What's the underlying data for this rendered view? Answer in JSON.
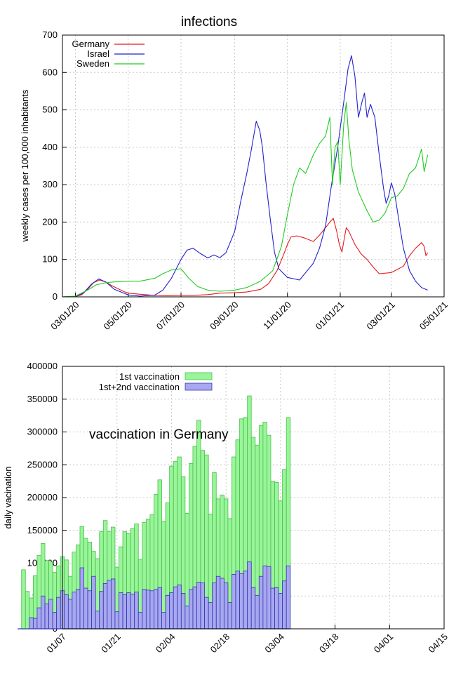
{
  "chart_data": [
    {
      "type": "line",
      "title": "infections",
      "xlabel": "",
      "ylabel": "weekly cases per 100,000 inhabitants",
      "ylim": [
        0,
        700
      ],
      "yticks": [
        0,
        100,
        200,
        300,
        400,
        500,
        600,
        700
      ],
      "xticks": [
        "03/01/20",
        "05/01/20",
        "07/01/20",
        "09/01/20",
        "11/01/20",
        "01/01/21",
        "03/01/21",
        "05/01/21"
      ],
      "xlim": [
        "02/15/20",
        "05/01/21"
      ],
      "grid": true,
      "legend_position": "top-left",
      "series": [
        {
          "name": "Germany",
          "color": "#e41a1c",
          "points": [
            [
              "02/15/20",
              0
            ],
            [
              "03/01/20",
              1
            ],
            [
              "03/08/20",
              5
            ],
            [
              "03/15/20",
              20
            ],
            [
              "03/22/20",
              38
            ],
            [
              "03/29/20",
              45
            ],
            [
              "04/05/20",
              40
            ],
            [
              "04/12/20",
              30
            ],
            [
              "04/19/20",
              22
            ],
            [
              "04/26/20",
              14
            ],
            [
              "05/01/20",
              10
            ],
            [
              "05/15/20",
              7
            ],
            [
              "06/01/20",
              4
            ],
            [
              "06/15/20",
              3
            ],
            [
              "07/01/20",
              4
            ],
            [
              "07/15/20",
              4
            ],
            [
              "08/01/20",
              6
            ],
            [
              "08/15/20",
              10
            ],
            [
              "09/01/20",
              11
            ],
            [
              "09/15/20",
              13
            ],
            [
              "10/01/20",
              20
            ],
            [
              "10/10/20",
              35
            ],
            [
              "10/20/20",
              70
            ],
            [
              "10/27/20",
              110
            ],
            [
              "11/01/20",
              140
            ],
            [
              "11/05/20",
              160
            ],
            [
              "11/12/20",
              163
            ],
            [
              "11/20/20",
              158
            ],
            [
              "12/01/20",
              148
            ],
            [
              "12/08/20",
              165
            ],
            [
              "12/15/20",
              185
            ],
            [
              "12/20/20",
              200
            ],
            [
              "12/24/20",
              210
            ],
            [
              "12/28/20",
              175
            ],
            [
              "12/31/20",
              140
            ],
            [
              "01/03/21",
              120
            ],
            [
              "01/06/21",
              160
            ],
            [
              "01/08/21",
              185
            ],
            [
              "01/11/21",
              175
            ],
            [
              "01/14/21",
              160
            ],
            [
              "01/18/21",
              140
            ],
            [
              "01/25/21",
              115
            ],
            [
              "02/01/21",
              100
            ],
            [
              "02/08/21",
              80
            ],
            [
              "02/15/21",
              62
            ],
            [
              "03/01/21",
              65
            ],
            [
              "03/15/21",
              82
            ],
            [
              "03/22/21",
              110
            ],
            [
              "03/29/21",
              130
            ],
            [
              "04/05/21",
              145
            ],
            [
              "04/08/21",
              135
            ],
            [
              "04/10/21",
              110
            ],
            [
              "04/12/21",
              118
            ]
          ]
        },
        {
          "name": "Israel",
          "color": "#2222cc",
          "points": [
            [
              "02/15/20",
              0
            ],
            [
              "03/01/20",
              1
            ],
            [
              "03/10/20",
              10
            ],
            [
              "03/20/20",
              35
            ],
            [
              "03/28/20",
              48
            ],
            [
              "04/05/20",
              40
            ],
            [
              "04/15/20",
              20
            ],
            [
              "05/01/20",
              5
            ],
            [
              "05/15/20",
              2
            ],
            [
              "06/01/20",
              5
            ],
            [
              "06/10/20",
              18
            ],
            [
              "06/20/20",
              50
            ],
            [
              "07/01/20",
              100
            ],
            [
              "07/08/20",
              125
            ],
            [
              "07/15/20",
              130
            ],
            [
              "07/22/20",
              118
            ],
            [
              "08/01/20",
              104
            ],
            [
              "08/08/20",
              112
            ],
            [
              "08/15/20",
              105
            ],
            [
              "08/22/20",
              118
            ],
            [
              "09/01/20",
              175
            ],
            [
              "09/08/20",
              255
            ],
            [
              "09/15/20",
              330
            ],
            [
              "09/20/20",
              390
            ],
            [
              "09/26/20",
              470
            ],
            [
              "09/30/20",
              445
            ],
            [
              "10/03/20",
              400
            ],
            [
              "10/07/20",
              310
            ],
            [
              "10/12/20",
              210
            ],
            [
              "10/17/20",
              120
            ],
            [
              "10/22/20",
              75
            ],
            [
              "11/01/20",
              52
            ],
            [
              "11/15/20",
              45
            ],
            [
              "12/01/20",
              90
            ],
            [
              "12/08/20",
              130
            ],
            [
              "12/15/20",
              190
            ],
            [
              "12/22/20",
              300
            ],
            [
              "12/29/20",
              400
            ],
            [
              "01/05/21",
              520
            ],
            [
              "01/10/21",
              610
            ],
            [
              "01/14/21",
              645
            ],
            [
              "01/18/21",
              590
            ],
            [
              "01/22/21",
              480
            ],
            [
              "01/26/21",
              520
            ],
            [
              "01/29/21",
              545
            ],
            [
              "02/01/21",
              480
            ],
            [
              "02/05/21",
              515
            ],
            [
              "02/10/21",
              480
            ],
            [
              "02/15/21",
              380
            ],
            [
              "02/20/21",
              290
            ],
            [
              "02/23/21",
              250
            ],
            [
              "02/26/21",
              270
            ],
            [
              "03/01/21",
              305
            ],
            [
              "03/05/21",
              275
            ],
            [
              "03/10/21",
              200
            ],
            [
              "03/15/21",
              130
            ],
            [
              "03/22/21",
              70
            ],
            [
              "03/29/21",
              42
            ],
            [
              "04/05/21",
              25
            ],
            [
              "04/12/21",
              18
            ]
          ]
        },
        {
          "name": "Sweden",
          "color": "#22cc22",
          "points": [
            [
              "02/15/20",
              0
            ],
            [
              "03/01/20",
              2
            ],
            [
              "03/15/20",
              18
            ],
            [
              "03/25/20",
              32
            ],
            [
              "04/05/20",
              38
            ],
            [
              "04/15/20",
              40
            ],
            [
              "05/01/20",
              42
            ],
            [
              "05/15/20",
              42
            ],
            [
              "06/01/20",
              50
            ],
            [
              "06/10/20",
              62
            ],
            [
              "06/20/20",
              72
            ],
            [
              "07/01/20",
              75
            ],
            [
              "07/10/20",
              50
            ],
            [
              "07/20/20",
              28
            ],
            [
              "08/01/20",
              18
            ],
            [
              "08/15/20",
              15
            ],
            [
              "09/01/20",
              18
            ],
            [
              "09/15/20",
              25
            ],
            [
              "10/01/20",
              42
            ],
            [
              "10/15/20",
              70
            ],
            [
              "10/25/20",
              135
            ],
            [
              "11/01/20",
              220
            ],
            [
              "11/08/20",
              300
            ],
            [
              "11/15/20",
              345
            ],
            [
              "11/22/20",
              330
            ],
            [
              "12/01/20",
              380
            ],
            [
              "12/08/20",
              410
            ],
            [
              "12/15/20",
              430
            ],
            [
              "12/20/20",
              480
            ],
            [
              "12/23/20",
              300
            ],
            [
              "12/26/20",
              400
            ],
            [
              "12/29/20",
              415
            ],
            [
              "01/01/21",
              300
            ],
            [
              "01/05/21",
              460
            ],
            [
              "01/08/21",
              520
            ],
            [
              "01/11/21",
              420
            ],
            [
              "01/15/21",
              340
            ],
            [
              "01/22/21",
              280
            ],
            [
              "02/01/21",
              230
            ],
            [
              "02/08/21",
              200
            ],
            [
              "02/15/21",
              205
            ],
            [
              "02/22/21",
              225
            ],
            [
              "03/01/21",
              265
            ],
            [
              "03/08/21",
              270
            ],
            [
              "03/15/21",
              290
            ],
            [
              "03/22/21",
              330
            ],
            [
              "03/29/21",
              345
            ],
            [
              "04/05/21",
              395
            ],
            [
              "04/08/21",
              335
            ],
            [
              "04/12/21",
              380
            ]
          ]
        }
      ]
    },
    {
      "type": "bar",
      "title": "vaccination in Germany",
      "xlabel": "",
      "ylabel": "daily vacination",
      "ylim": [
        0,
        400000
      ],
      "yticks": [
        0,
        50000,
        100000,
        150000,
        200000,
        250000,
        300000,
        350000,
        400000
      ],
      "ytick_labels": [
        "0",
        "50000",
        "100000",
        "150000",
        "200000",
        "250000",
        "300000",
        "350000",
        "400000"
      ],
      "xticks": [
        "01/07",
        "01/21",
        "02/04",
        "02/18",
        "03/04",
        "03/18",
        "04/01",
        "04/15"
      ],
      "xlim": [
        "01/07",
        "04/15"
      ],
      "x_start": "12/27",
      "grid": true,
      "legend_position": "top-center",
      "series": [
        {
          "name": "1st vaccination",
          "color": "#99f599",
          "values": [
            0,
            90000,
            57000,
            47000,
            81000,
            112000,
            130000,
            104000,
            102000,
            86000,
            96000,
            110000,
            105000,
            80000,
            117000,
            128000,
            156000,
            138000,
            132000,
            118000,
            107000,
            148000,
            165000,
            148000,
            155000,
            94000,
            125000,
            148000,
            145000,
            153000,
            160000,
            106000,
            162000,
            167000,
            174000,
            205000,
            227000,
            164000,
            192000,
            248000,
            255000,
            262000,
            232000,
            176000,
            252000,
            278000,
            318000,
            272000,
            265000,
            175000,
            238000,
            198000,
            204000,
            198000,
            168000,
            262000,
            288000,
            320000,
            322000,
            355000,
            292000,
            280000,
            310000,
            315000,
            295000,
            225000,
            223000,
            195000,
            243000,
            322000
          ]
        },
        {
          "name": "1st+2nd vaccination",
          "color": "#a8a8f0",
          "values": [
            0,
            0,
            0,
            17000,
            16000,
            32000,
            50000,
            38000,
            45000,
            25000,
            48000,
            58000,
            52000,
            45000,
            56000,
            60000,
            93000,
            62000,
            58000,
            80000,
            27000,
            57000,
            69000,
            74000,
            76000,
            26000,
            55000,
            52000,
            55000,
            53000,
            56000,
            25000,
            60000,
            59000,
            58000,
            60000,
            63000,
            25000,
            51000,
            55000,
            64000,
            67000,
            54000,
            35000,
            60000,
            64000,
            71000,
            70000,
            48000,
            40000,
            70000,
            80000,
            77000,
            70000,
            40000,
            83000,
            88000,
            84000,
            88000,
            102000,
            63000,
            51000,
            80000,
            96000,
            95000,
            62000,
            63000,
            54000,
            73000,
            96000
          ]
        }
      ]
    }
  ]
}
